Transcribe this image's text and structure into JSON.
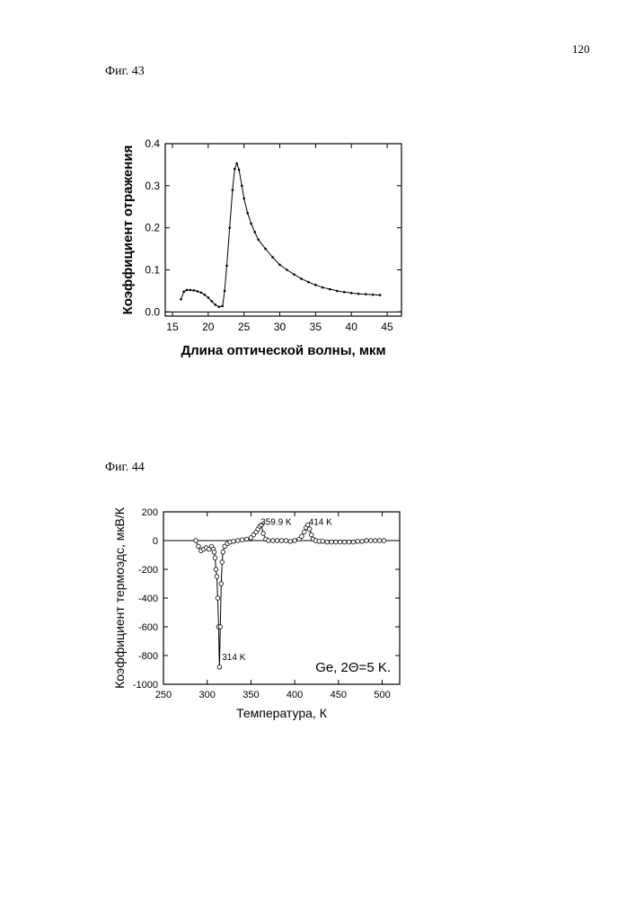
{
  "page": {
    "number": "120",
    "fig43_caption": "Фиг. 43",
    "fig44_caption": "Фиг. 44"
  },
  "chart_data": [
    {
      "type": "line",
      "xlabel": "Длина оптической волны, мкм",
      "ylabel": "Коэффициент отражения",
      "xlim": [
        14,
        47
      ],
      "ylim": [
        -0.01,
        0.4
      ],
      "x_ticks": [
        15,
        20,
        25,
        30,
        35,
        40,
        45
      ],
      "y_ticks": [
        0.0,
        0.1,
        0.2,
        0.3,
        0.4
      ],
      "x_tick_labels": [
        "15",
        "20",
        "25",
        "30",
        "35",
        "40",
        "45"
      ],
      "y_tick_labels": [
        "0.0",
        "0.1",
        "0.2",
        "0.3",
        "0.4"
      ],
      "baseline": 0,
      "series": [
        {
          "marker": "dot",
          "x": [
            16.2,
            16.6,
            17.0,
            17.5,
            18.0,
            18.5,
            19.0,
            19.5,
            20.0,
            20.5,
            21.0,
            21.5,
            22.0,
            22.3,
            22.6,
            23.0,
            23.4,
            23.7,
            24.0,
            24.3,
            24.7,
            25.0,
            25.5,
            26.0,
            26.5,
            27.0,
            28.0,
            29.0,
            30.0,
            31.0,
            32.0,
            33.0,
            34.0,
            35.0,
            36.0,
            37.0,
            38.0,
            39.0,
            40.0,
            41.0,
            42.0,
            43.0,
            44.0
          ],
          "y": [
            0.03,
            0.048,
            0.052,
            0.052,
            0.051,
            0.049,
            0.046,
            0.041,
            0.034,
            0.025,
            0.017,
            0.012,
            0.014,
            0.05,
            0.11,
            0.2,
            0.29,
            0.34,
            0.353,
            0.338,
            0.3,
            0.27,
            0.235,
            0.21,
            0.19,
            0.172,
            0.15,
            0.13,
            0.112,
            0.1,
            0.089,
            0.079,
            0.071,
            0.064,
            0.058,
            0.054,
            0.05,
            0.047,
            0.045,
            0.043,
            0.042,
            0.041,
            0.04
          ]
        }
      ]
    },
    {
      "type": "line",
      "xlabel": "Температура, К",
      "ylabel": "Коэффициент термоэдс, мкВ/К",
      "xlim": [
        250,
        520
      ],
      "ylim": [
        -1000,
        200
      ],
      "x_ticks": [
        250,
        300,
        350,
        400,
        450,
        500
      ],
      "y_ticks": [
        -1000,
        -800,
        -600,
        -400,
        -200,
        0,
        200
      ],
      "x_tick_labels": [
        "250",
        "300",
        "350",
        "400",
        "450",
        "500"
      ],
      "y_tick_labels": [
        "-1000",
        "-800",
        "-600",
        "-400",
        "-200",
        "0",
        "200"
      ],
      "baseline": 0,
      "legend_text": "Ge,  2Θ=5 K.",
      "annotations": [
        {
          "text": "359.9 K",
          "x": 361,
          "y": 110
        },
        {
          "text": "414 K",
          "x": 416,
          "y": 110
        },
        {
          "text": "314 K",
          "x": 317,
          "y": -830
        }
      ],
      "series": [
        {
          "marker": "open-circle",
          "x": [
            287,
            290,
            293,
            296,
            299,
            302,
            305,
            307,
            308,
            309,
            310,
            311,
            312,
            313,
            314,
            315,
            316,
            317,
            318,
            320,
            323,
            326,
            330,
            335,
            340,
            345,
            350,
            353,
            356,
            358,
            360,
            362,
            364,
            367,
            370,
            375,
            380,
            385,
            390,
            395,
            400,
            405,
            408,
            411,
            413,
            415,
            417,
            419,
            421,
            424,
            428,
            432,
            437,
            442,
            447,
            452,
            457,
            462,
            467,
            472,
            477,
            482,
            487,
            492,
            497,
            502
          ],
          "y": [
            0,
            -40,
            -70,
            -60,
            -50,
            -60,
            -40,
            -60,
            -80,
            -120,
            -200,
            -250,
            -400,
            -600,
            -880,
            -600,
            -300,
            -150,
            -80,
            -40,
            -20,
            -10,
            -5,
            0,
            5,
            10,
            20,
            40,
            60,
            80,
            100,
            110,
            50,
            10,
            0,
            0,
            0,
            0,
            0,
            -5,
            0,
            10,
            30,
            60,
            90,
            110,
            80,
            40,
            10,
            0,
            -5,
            -5,
            -10,
            -10,
            -10,
            -10,
            -10,
            -10,
            -10,
            -5,
            -5,
            0,
            0,
            0,
            0,
            0
          ]
        }
      ]
    }
  ]
}
